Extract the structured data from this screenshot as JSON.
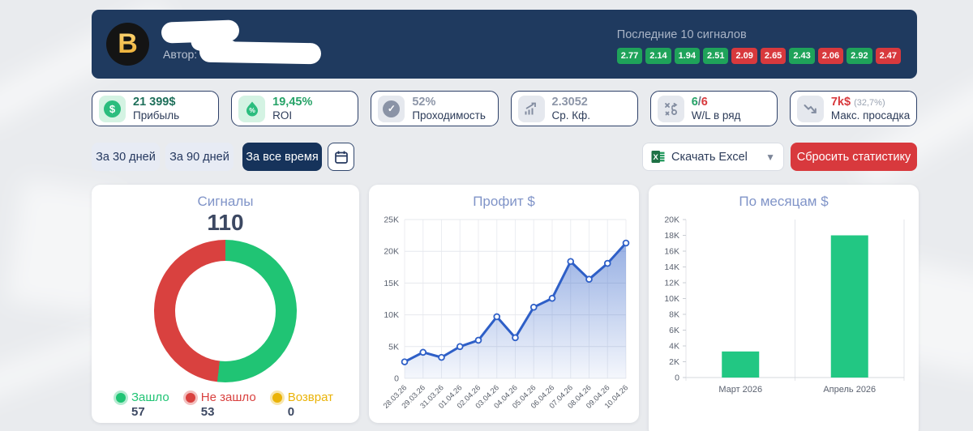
{
  "header": {
    "logo_letter": "B",
    "author_label": "Автор:",
    "signals_label": "Последние 10 сигналов",
    "signals": [
      {
        "value": "2.77",
        "result": "win"
      },
      {
        "value": "2.14",
        "result": "win"
      },
      {
        "value": "1.94",
        "result": "win"
      },
      {
        "value": "2.51",
        "result": "win"
      },
      {
        "value": "2.09",
        "result": "loss"
      },
      {
        "value": "2.65",
        "result": "loss"
      },
      {
        "value": "2.43",
        "result": "win"
      },
      {
        "value": "2.06",
        "result": "loss"
      },
      {
        "value": "2.92",
        "result": "win"
      },
      {
        "value": "2.47",
        "result": "loss"
      }
    ]
  },
  "stats": {
    "profit": {
      "value": "21 399$",
      "label": "Прибыль"
    },
    "roi": {
      "value": "19,45%",
      "label": "ROI"
    },
    "winrate": {
      "value": "52%",
      "label": "Проходимость"
    },
    "avg_odds": {
      "value": "2.3052",
      "label": "Ср. Кф."
    },
    "wl": {
      "win": "6",
      "sep": "/",
      "loss": "6",
      "label": "W/L в ряд"
    },
    "drawdown": {
      "value": "7k$",
      "percent": "(32,7%)",
      "label": "Макс. просадка"
    }
  },
  "filters": {
    "period_30": "За 30 дней",
    "period_90": "За 90 дней",
    "period_all": "За все время",
    "download_excel": "Скачать Excel",
    "reset_stats": "Сбросить статистику"
  },
  "chart_data": [
    {
      "type": "pie",
      "title": "Сигналы",
      "total": "110",
      "slices": [
        {
          "label": "Зашло",
          "value": 57,
          "color": "#20c474"
        },
        {
          "label": "Не зашло",
          "value": 53,
          "color": "#d9413f"
        },
        {
          "label": "Возврат",
          "value": 0,
          "color": "#eab308"
        }
      ],
      "legend_position": "bottom"
    },
    {
      "type": "area",
      "title": "Профит $",
      "x": [
        "28.03.26",
        "29.03.26",
        "31.03.26",
        "01.04.26",
        "02.04.26",
        "03.04.26",
        "04.04.26",
        "05.04.26",
        "06.04.26",
        "07.04.26",
        "08.04.26",
        "09.04.26",
        "10.04.26"
      ],
      "values": [
        2600,
        4100,
        3300,
        5000,
        6000,
        9700,
        6400,
        11200,
        12600,
        18400,
        15600,
        18100,
        21300
      ],
      "ylim": [
        0,
        25000
      ],
      "yticks": [
        0,
        5000,
        10000,
        15000,
        20000,
        25000
      ],
      "ytick_labels": [
        "0",
        "5K",
        "10K",
        "15K",
        "20K",
        "25K"
      ],
      "line_color": "#2e5fc7",
      "grid": true
    },
    {
      "type": "bar",
      "title": "По месяцам $",
      "categories": [
        "Март 2026",
        "Апрель 2026"
      ],
      "values": [
        3300,
        18000
      ],
      "ylim": [
        0,
        20000
      ],
      "yticks": [
        0,
        2000,
        4000,
        6000,
        8000,
        10000,
        12000,
        14000,
        16000,
        18000,
        20000
      ],
      "ytick_labels": [
        "0",
        "2K",
        "4K",
        "6K",
        "8K",
        "10K",
        "12K",
        "14K",
        "16K",
        "18K",
        "20K"
      ],
      "bar_color": "#22c783",
      "grid": false
    }
  ],
  "colors": {
    "header_bg": "#1f3a5f",
    "badge_win": "#1fa35a",
    "badge_loss": "#d8393d",
    "accent_red": "#d8393d",
    "accent_green": "#22c783",
    "line_blue": "#2e5fc7",
    "title_periwinkle": "#8094c8"
  }
}
